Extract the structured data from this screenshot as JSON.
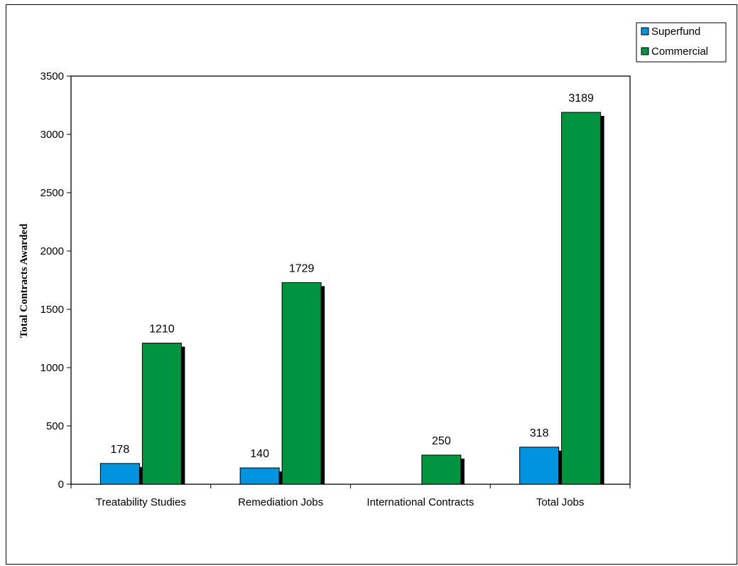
{
  "chart_data": {
    "type": "bar",
    "title": "",
    "xlabel": "",
    "ylabel": "Total Contracts Awarded",
    "ylim": [
      0,
      3500
    ],
    "yticks": [
      0,
      500,
      1000,
      1500,
      2000,
      2500,
      3000,
      3500
    ],
    "categories": [
      "Treatability Studies",
      "Remediation Jobs",
      "International Contracts",
      "Total Jobs"
    ],
    "series": [
      {
        "name": "Superfund",
        "color": "#0094e0",
        "values": [
          178,
          140,
          null,
          318
        ]
      },
      {
        "name": "Commercial",
        "color": "#009440",
        "values": [
          1210,
          1729,
          250,
          3189
        ]
      }
    ],
    "legend": "top-right",
    "grid": false
  }
}
